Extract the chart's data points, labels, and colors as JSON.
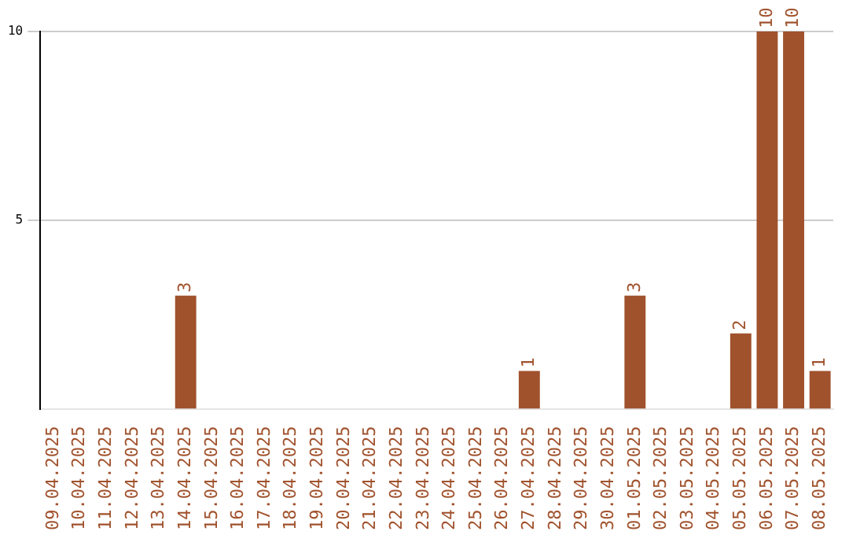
{
  "chart_data": {
    "type": "bar",
    "categories": [
      "09.04.2025",
      "10.04.2025",
      "11.04.2025",
      "12.04.2025",
      "13.04.2025",
      "14.04.2025",
      "15.04.2025",
      "16.04.2025",
      "17.04.2025",
      "18.04.2025",
      "19.04.2025",
      "20.04.2025",
      "21.04.2025",
      "22.04.2025",
      "23.04.2025",
      "24.04.2025",
      "25.04.2025",
      "26.04.2025",
      "27.04.2025",
      "28.04.2025",
      "29.04.2025",
      "30.04.2025",
      "01.05.2025",
      "02.05.2025",
      "03.05.2025",
      "04.05.2025",
      "05.05.2025",
      "06.05.2025",
      "07.05.2025",
      "08.05.2025"
    ],
    "values": [
      0,
      0,
      0,
      0,
      0,
      3,
      0,
      0,
      0,
      0,
      0,
      0,
      0,
      0,
      0,
      0,
      0,
      0,
      1,
      0,
      0,
      0,
      3,
      0,
      0,
      0,
      2,
      10,
      10,
      1
    ],
    "value_labels": [
      null,
      null,
      null,
      null,
      null,
      "3",
      null,
      null,
      null,
      null,
      null,
      null,
      null,
      null,
      null,
      null,
      null,
      null,
      "1",
      null,
      null,
      null,
      "3",
      null,
      null,
      null,
      "2",
      "10",
      "10",
      "1"
    ],
    "color": "#a0522d",
    "ylim": [
      0,
      10
    ],
    "yticks": [
      5,
      10
    ],
    "grid": "y",
    "legend": false
  }
}
